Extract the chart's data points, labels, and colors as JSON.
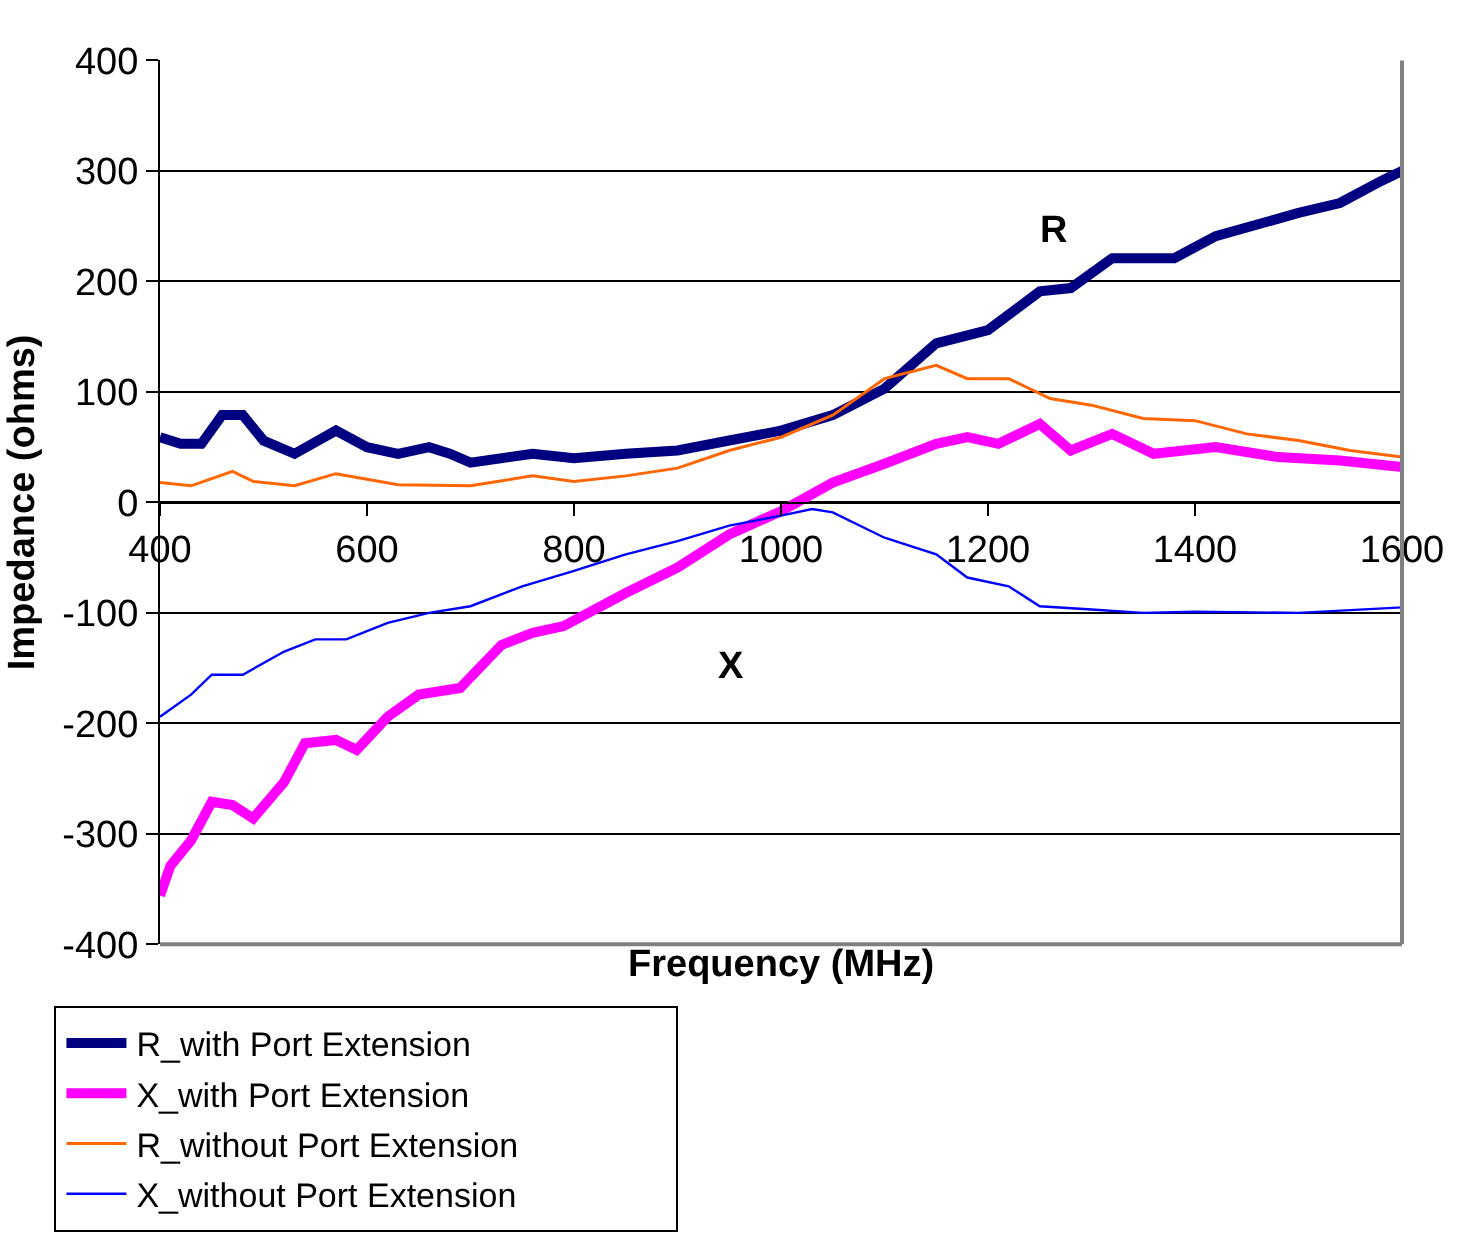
{
  "chart_data": {
    "type": "line",
    "xlabel": "Frequency (MHz)",
    "ylabel": "Impedance (ohms)",
    "xlim": [
      400,
      1600
    ],
    "xticks": [
      400,
      600,
      800,
      1000,
      1200,
      1400,
      1600
    ],
    "ylim": [
      -400,
      400
    ],
    "yticks": [
      -400,
      -300,
      -200,
      -100,
      0,
      100,
      200,
      300,
      400
    ],
    "grid": "y",
    "legend": "bottom",
    "marker": "none",
    "line_style": "solid",
    "annotations": [
      "R",
      "X"
    ],
    "series": [
      {
        "name": "R_with Port Extension",
        "color": "#000080",
        "x": [
          400,
          420,
          440,
          460,
          480,
          500,
          530,
          570,
          600,
          630,
          660,
          680,
          700,
          760,
          800,
          850,
          900,
          950,
          1000,
          1050,
          1100,
          1150,
          1200,
          1250,
          1280,
          1320,
          1380,
          1420,
          1500,
          1540,
          1580,
          1600
        ],
        "values": [
          59,
          53,
          53,
          79,
          79,
          56,
          44,
          65,
          50,
          44,
          50,
          44,
          36,
          44,
          40,
          44,
          47,
          56,
          65,
          79,
          103,
          144,
          156,
          191,
          194,
          221,
          221,
          241,
          262,
          271,
          291,
          300
        ]
      },
      {
        "name": "X_with Port Extension",
        "color": "#ff00ff",
        "x": [
          400,
          410,
          430,
          450,
          470,
          490,
          520,
          540,
          570,
          590,
          620,
          650,
          690,
          730,
          760,
          790,
          850,
          900,
          950,
          1000,
          1050,
          1100,
          1150,
          1180,
          1210,
          1250,
          1280,
          1320,
          1360,
          1420,
          1480,
          1540,
          1600
        ],
        "values": [
          -356,
          -329,
          -306,
          -271,
          -274,
          -286,
          -253,
          -218,
          -215,
          -224,
          -194,
          -174,
          -168,
          -129,
          -118,
          -112,
          -82,
          -59,
          -29,
          -8,
          18,
          35,
          53,
          59,
          53,
          71,
          47,
          62,
          44,
          50,
          41,
          38,
          32
        ]
      },
      {
        "name": "R_without Port Extension",
        "color": "#ff6600",
        "x": [
          400,
          430,
          470,
          490,
          530,
          570,
          600,
          630,
          700,
          760,
          800,
          850,
          900,
          950,
          1000,
          1050,
          1100,
          1150,
          1180,
          1220,
          1260,
          1300,
          1350,
          1400,
          1450,
          1500,
          1550,
          1600
        ],
        "values": [
          18,
          15,
          28,
          19,
          15,
          26,
          21,
          16,
          15,
          24,
          19,
          24,
          31,
          47,
          59,
          79,
          112,
          124,
          112,
          112,
          94,
          88,
          76,
          74,
          62,
          56,
          47,
          41
        ]
      },
      {
        "name": "X_without Port Extension",
        "color": "#0000ff",
        "x": [
          400,
          430,
          450,
          480,
          520,
          550,
          580,
          620,
          660,
          700,
          750,
          800,
          850,
          900,
          950,
          1000,
          1030,
          1050,
          1100,
          1150,
          1180,
          1220,
          1250,
          1300,
          1350,
          1400,
          1500,
          1600
        ],
        "values": [
          -194,
          -174,
          -156,
          -156,
          -135,
          -124,
          -124,
          -109,
          -100,
          -94,
          -76,
          -62,
          -47,
          -35,
          -21,
          -12,
          -6,
          -9,
          -32,
          -47,
          -68,
          -76,
          -94,
          -97,
          -100,
          -99,
          -100,
          -95
        ]
      }
    ]
  }
}
